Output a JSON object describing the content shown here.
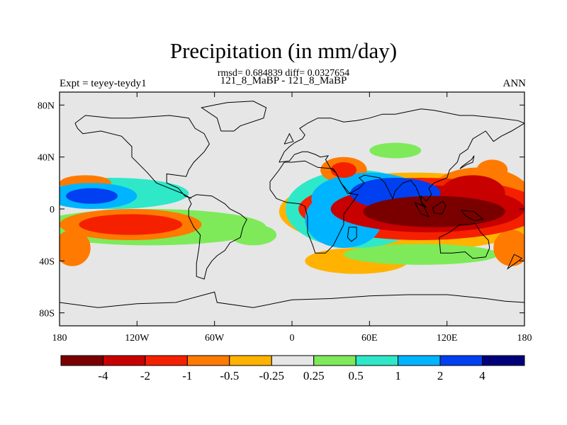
{
  "chart_data": {
    "type": "heatmap",
    "title": "Precipitation (in mm/day)",
    "stats": "rmsd= 0.684839 diff= 0.0327654",
    "subtitle": "121_8_MaBP - 121_8_MaBP",
    "experiment": "Expt = teyey-teydy1",
    "season": "ANN",
    "xlim": [
      -180,
      180
    ],
    "ylim": [
      -90,
      90
    ],
    "x_ticks": [
      {
        "value": -180,
        "label": "180"
      },
      {
        "value": -120,
        "label": "120W"
      },
      {
        "value": -60,
        "label": "60W"
      },
      {
        "value": 0,
        "label": "0"
      },
      {
        "value": 60,
        "label": "60E"
      },
      {
        "value": 120,
        "label": "120E"
      },
      {
        "value": 180,
        "label": "180"
      }
    ],
    "y_ticks": [
      {
        "value": 80,
        "label": "80N"
      },
      {
        "value": 40,
        "label": "40N"
      },
      {
        "value": 0,
        "label": "0"
      },
      {
        "value": -40,
        "label": "40S"
      },
      {
        "value": -80,
        "label": "80S"
      }
    ],
    "colorbar": {
      "colors": [
        "#7a0000",
        "#c80000",
        "#f52000",
        "#ff7a00",
        "#ffb300",
        "#e6e6e6",
        "#7eea5a",
        "#2ee8c8",
        "#00b4ff",
        "#0040f0",
        "#00007a"
      ],
      "labels": [
        "-4",
        "-2",
        "-1",
        "-0.5",
        "-0.25",
        "0.25",
        "0.5",
        "1",
        "2",
        "4"
      ]
    },
    "anomaly_regions": [
      {
        "lon": 110,
        "lat": -2,
        "rlon": 55,
        "rlat": 12,
        "level": 0
      },
      {
        "lon": 105,
        "lat": 0,
        "rlon": 75,
        "rlat": 18,
        "level": 1
      },
      {
        "lon": 100,
        "lat": 0,
        "rlon": 95,
        "rlat": 24,
        "level": 2
      },
      {
        "lon": 140,
        "lat": 12,
        "rlon": 25,
        "rlat": 14,
        "level": 1
      },
      {
        "lon": 145,
        "lat": 10,
        "rlon": 40,
        "rlat": 22,
        "level": 3
      },
      {
        "lon": 95,
        "lat": -2,
        "rlon": 105,
        "rlat": 30,
        "level": 4
      },
      {
        "lon": 60,
        "lat": 8,
        "rlon": 45,
        "rlat": 20,
        "level": 8
      },
      {
        "lon": 40,
        "lat": -8,
        "rlon": 30,
        "rlat": 22,
        "level": 8
      },
      {
        "lon": 50,
        "lat": 0,
        "rlon": 55,
        "rlat": 30,
        "level": 7
      },
      {
        "lon": 80,
        "lat": 12,
        "rlon": 35,
        "rlat": 12,
        "level": 9
      },
      {
        "lon": 40,
        "lat": 30,
        "rlon": 18,
        "rlat": 10,
        "level": 3
      },
      {
        "lon": 40,
        "lat": 30,
        "rlon": 10,
        "rlat": 6,
        "level": 2
      },
      {
        "lon": 155,
        "lat": 30,
        "rlon": 12,
        "rlat": 8,
        "level": 3
      },
      {
        "lon": -155,
        "lat": 10,
        "rlon": 35,
        "rlat": 10,
        "level": 8
      },
      {
        "lon": -155,
        "lat": 10,
        "rlon": 20,
        "rlat": 6,
        "level": 9
      },
      {
        "lon": -140,
        "lat": 12,
        "rlon": 60,
        "rlat": 12,
        "level": 7
      },
      {
        "lon": -160,
        "lat": 20,
        "rlon": 20,
        "rlat": 6,
        "level": 3
      },
      {
        "lon": -125,
        "lat": -12,
        "rlon": 40,
        "rlat": 8,
        "level": 2
      },
      {
        "lon": -125,
        "lat": -12,
        "rlon": 55,
        "rlat": 12,
        "level": 3
      },
      {
        "lon": -110,
        "lat": -14,
        "rlon": 90,
        "rlat": 14,
        "level": 6
      },
      {
        "lon": -170,
        "lat": -30,
        "rlon": 14,
        "rlat": 14,
        "level": 3
      },
      {
        "lon": -30,
        "lat": -20,
        "rlon": 18,
        "rlat": 8,
        "level": 6
      },
      {
        "lon": 50,
        "lat": -40,
        "rlon": 40,
        "rlat": 10,
        "level": 4
      },
      {
        "lon": 100,
        "lat": -35,
        "rlon": 60,
        "rlat": 8,
        "level": 6
      },
      {
        "lon": 170,
        "lat": -30,
        "rlon": 14,
        "rlat": 14,
        "level": 3
      },
      {
        "lon": 80,
        "lat": 45,
        "rlon": 20,
        "rlat": 6,
        "level": 6
      }
    ],
    "land_outlines": [
      [
        [
          -168,
          66
        ],
        [
          -160,
          72
        ],
        [
          -140,
          70
        ],
        [
          -125,
          70
        ],
        [
          -95,
          72
        ],
        [
          -80,
          70
        ],
        [
          -75,
          62
        ],
        [
          -68,
          58
        ],
        [
          -64,
          50
        ],
        [
          -68,
          44
        ],
        [
          -76,
          36
        ],
        [
          -80,
          30
        ],
        [
          -82,
          25
        ],
        [
          -97,
          27
        ],
        [
          -97,
          20
        ],
        [
          -88,
          16
        ],
        [
          -83,
          10
        ],
        [
          -78,
          8
        ],
        [
          -85,
          12
        ],
        [
          -95,
          16
        ],
        [
          -105,
          20
        ],
        [
          -112,
          28
        ],
        [
          -118,
          34
        ],
        [
          -124,
          40
        ],
        [
          -124,
          48
        ],
        [
          -132,
          56
        ],
        [
          -148,
          60
        ],
        [
          -162,
          58
        ],
        [
          -166,
          62
        ],
        [
          -168,
          66
        ]
      ],
      [
        [
          -80,
          8
        ],
        [
          -74,
          11
        ],
        [
          -62,
          10
        ],
        [
          -52,
          4
        ],
        [
          -48,
          0
        ],
        [
          -40,
          -4
        ],
        [
          -35,
          -8
        ],
        [
          -38,
          -14
        ],
        [
          -40,
          -22
        ],
        [
          -48,
          -26
        ],
        [
          -52,
          -32
        ],
        [
          -58,
          -36
        ],
        [
          -62,
          -40
        ],
        [
          -66,
          -46
        ],
        [
          -68,
          -54
        ],
        [
          -74,
          -52
        ],
        [
          -74,
          -42
        ],
        [
          -72,
          -30
        ],
        [
          -71,
          -20
        ],
        [
          -76,
          -14
        ],
        [
          -80,
          -6
        ],
        [
          -80,
          0
        ],
        [
          -78,
          4
        ],
        [
          -80,
          8
        ]
      ],
      [
        [
          -55,
          60
        ],
        [
          -45,
          60
        ],
        [
          -40,
          64
        ],
        [
          -22,
          70
        ],
        [
          -20,
          78
        ],
        [
          -30,
          83
        ],
        [
          -50,
          82
        ],
        [
          -60,
          80
        ],
        [
          -70,
          78
        ],
        [
          -58,
          70
        ],
        [
          -55,
          60
        ]
      ],
      [
        [
          -10,
          36
        ],
        [
          -6,
          44
        ],
        [
          -2,
          48
        ],
        [
          2,
          51
        ],
        [
          8,
          54
        ],
        [
          10,
          57
        ],
        [
          6,
          62
        ],
        [
          12,
          66
        ],
        [
          20,
          70
        ],
        [
          30,
          70
        ],
        [
          40,
          67
        ],
        [
          50,
          68
        ],
        [
          60,
          70
        ],
        [
          70,
          73
        ],
        [
          80,
          73
        ],
        [
          100,
          77
        ],
        [
          110,
          76
        ],
        [
          130,
          72
        ],
        [
          140,
          72
        ],
        [
          160,
          70
        ],
        [
          175,
          68
        ],
        [
          180,
          66
        ],
        [
          170,
          60
        ],
        [
          162,
          56
        ],
        [
          156,
          52
        ],
        [
          150,
          60
        ],
        [
          140,
          54
        ],
        [
          136,
          46
        ],
        [
          130,
          42
        ],
        [
          128,
          36
        ],
        [
          122,
          30
        ],
        [
          120,
          24
        ],
        [
          110,
          20
        ],
        [
          106,
          16
        ],
        [
          108,
          11
        ],
        [
          104,
          6
        ],
        [
          100,
          10
        ],
        [
          100,
          4
        ],
        [
          104,
          1
        ],
        [
          100,
          6
        ],
        [
          98,
          12
        ],
        [
          96,
          17
        ],
        [
          92,
          22
        ],
        [
          86,
          20
        ],
        [
          80,
          14
        ],
        [
          78,
          8
        ],
        [
          72,
          20
        ],
        [
          68,
          24
        ],
        [
          62,
          25
        ],
        [
          56,
          26
        ],
        [
          52,
          24
        ],
        [
          56,
          20
        ],
        [
          52,
          16
        ],
        [
          45,
          12
        ],
        [
          43,
          14
        ],
        [
          38,
          20
        ],
        [
          34,
          28
        ],
        [
          30,
          31
        ],
        [
          26,
          38
        ],
        [
          28,
          41
        ],
        [
          22,
          40
        ],
        [
          18,
          42
        ],
        [
          12,
          44
        ],
        [
          8,
          44
        ],
        [
          2,
          42
        ],
        [
          -2,
          37
        ],
        [
          -10,
          36
        ]
      ],
      [
        [
          -17,
          15
        ],
        [
          -17,
          21
        ],
        [
          -10,
          30
        ],
        [
          -6,
          36
        ],
        [
          0,
          36
        ],
        [
          10,
          37
        ],
        [
          20,
          32
        ],
        [
          32,
          31
        ],
        [
          34,
          28
        ],
        [
          38,
          20
        ],
        [
          43,
          12
        ],
        [
          51,
          11
        ],
        [
          46,
          4
        ],
        [
          40,
          -4
        ],
        [
          40,
          -12
        ],
        [
          35,
          -22
        ],
        [
          32,
          -28
        ],
        [
          26,
          -34
        ],
        [
          18,
          -34
        ],
        [
          16,
          -28
        ],
        [
          12,
          -18
        ],
        [
          12,
          -6
        ],
        [
          10,
          2
        ],
        [
          6,
          4
        ],
        [
          -4,
          5
        ],
        [
          -12,
          8
        ],
        [
          -17,
          15
        ]
      ],
      [
        [
          44,
          -14
        ],
        [
          50,
          -14
        ],
        [
          50,
          -22
        ],
        [
          46,
          -25
        ],
        [
          43,
          -22
        ],
        [
          44,
          -14
        ]
      ],
      [
        [
          114,
          -22
        ],
        [
          122,
          -18
        ],
        [
          130,
          -12
        ],
        [
          137,
          -12
        ],
        [
          142,
          -11
        ],
        [
          146,
          -18
        ],
        [
          152,
          -24
        ],
        [
          153,
          -30
        ],
        [
          150,
          -37
        ],
        [
          140,
          -38
        ],
        [
          134,
          -33
        ],
        [
          124,
          -34
        ],
        [
          115,
          -34
        ],
        [
          114,
          -22
        ]
      ],
      [
        [
          95,
          5
        ],
        [
          102,
          2
        ],
        [
          106,
          -6
        ],
        [
          100,
          -4
        ],
        [
          95,
          5
        ]
      ],
      [
        [
          109,
          1
        ],
        [
          117,
          6
        ],
        [
          119,
          2
        ],
        [
          116,
          -4
        ],
        [
          110,
          -3
        ],
        [
          109,
          1
        ]
      ],
      [
        [
          131,
          -1
        ],
        [
          141,
          -2
        ],
        [
          148,
          -8
        ],
        [
          141,
          -9
        ],
        [
          134,
          -5
        ],
        [
          131,
          -1
        ]
      ],
      [
        [
          130,
          31
        ],
        [
          135,
          34
        ],
        [
          140,
          36
        ],
        [
          141,
          41
        ],
        [
          139,
          38
        ],
        [
          132,
          33
        ],
        [
          130,
          31
        ]
      ],
      [
        [
          -6,
          50
        ],
        [
          -2,
          58
        ],
        [
          1,
          52
        ],
        [
          -6,
          50
        ]
      ],
      [
        [
          172,
          -35
        ],
        [
          178,
          -38
        ],
        [
          174,
          -41
        ],
        [
          167,
          -46
        ],
        [
          172,
          -35
        ]
      ],
      [
        [
          -180,
          -72
        ],
        [
          -150,
          -76
        ],
        [
          -120,
          -73
        ],
        [
          -90,
          -72
        ],
        [
          -60,
          -64
        ],
        [
          -58,
          -72
        ],
        [
          -30,
          -76
        ],
        [
          0,
          -70
        ],
        [
          30,
          -69
        ],
        [
          60,
          -67
        ],
        [
          90,
          -66
        ],
        [
          120,
          -66
        ],
        [
          150,
          -69
        ],
        [
          165,
          -71
        ],
        [
          180,
          -72
        ],
        [
          180,
          -90
        ],
        [
          -180,
          -90
        ],
        [
          -180,
          -72
        ]
      ]
    ]
  }
}
